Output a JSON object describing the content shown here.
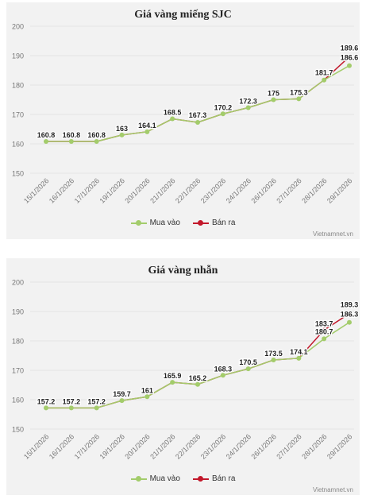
{
  "colors": {
    "buy": "#a3cc6b",
    "sell": "#c2182b",
    "grid": "#e4e4e4",
    "tick": "#777777"
  },
  "chart_data": [
    {
      "type": "line",
      "title": "Giá vàng miếng SJC",
      "categories": [
        "15/1/2026",
        "16/1/2026",
        "17/1/2026",
        "19/1/2026",
        "20/1/2026",
        "21/1/2026",
        "22/1/2026",
        "23/1/2026",
        "24/1/2026",
        "26/1/2026",
        "27/1/2026",
        "28/1/2026",
        "29/1/2026"
      ],
      "yticks": [
        "150",
        "160",
        "170",
        "180",
        "190",
        "200"
      ],
      "ylim": [
        150,
        200
      ],
      "grid": true,
      "legend_position": "bottom",
      "series": [
        {
          "name": "Mua vào",
          "values": [
            160.8,
            160.8,
            160.8,
            163,
            164.1,
            168.5,
            167.3,
            170.2,
            172.3,
            175,
            175.3,
            181.7,
            186.6
          ]
        },
        {
          "name": "Bán ra",
          "values": [
            160.8,
            160.8,
            160.8,
            163,
            164.1,
            168.5,
            167.3,
            170.2,
            172.3,
            175,
            175.3,
            181.7,
            189.6
          ]
        }
      ],
      "labels": [
        "160.8",
        "160.8",
        "160.8",
        "163",
        "164.1",
        "168.5",
        "167.3",
        "170.2",
        "172.3",
        "175",
        "175.3",
        "181.7",
        "189.6",
        "186.6"
      ],
      "source": "Vietnamnet.vn"
    },
    {
      "type": "line",
      "title": "Giá vàng nhẫn",
      "categories": [
        "15/1/2026",
        "16/1/2026",
        "17/1/2026",
        "19/1/2026",
        "20/1/2026",
        "21/1/2026",
        "22/1/2026",
        "23/1/2026",
        "24/1/2026",
        "26/1/2026",
        "27/1/2026",
        "28/1/2026",
        "29/1/2026"
      ],
      "yticks": [
        "150",
        "160",
        "170",
        "180",
        "190",
        "200"
      ],
      "ylim": [
        150,
        200
      ],
      "grid": true,
      "legend_position": "bottom",
      "series": [
        {
          "name": "Mua vào",
          "values": [
            157.2,
            157.2,
            157.2,
            159.7,
            161,
            165.9,
            165.2,
            168.3,
            170.5,
            173.5,
            174.1,
            180.7,
            186.3
          ]
        },
        {
          "name": "Bán ra",
          "values": [
            157.2,
            157.2,
            157.2,
            159.7,
            161,
            165.9,
            165.2,
            168.3,
            170.5,
            173.5,
            174.1,
            183.7,
            189.3
          ]
        }
      ],
      "labels": [
        "157.2",
        "157.2",
        "157.2",
        "159.7",
        "161",
        "165.9",
        "165.2",
        "168.3",
        "170.5",
        "173.5",
        "174.1",
        "183.7",
        "180.7",
        "189.3",
        "186.3"
      ],
      "source": "Vietnamnet.vn"
    }
  ]
}
